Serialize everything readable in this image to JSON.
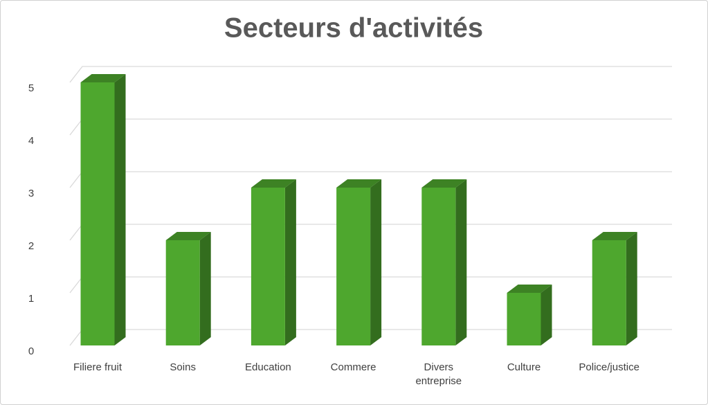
{
  "chart_data": {
    "type": "bar",
    "title": "Secteurs d'activités",
    "categories": [
      "Filiere fruit",
      "Soins",
      "Education",
      "Commere",
      "Divers entreprise",
      "Culture",
      "Police/justice"
    ],
    "values": [
      5,
      2,
      3,
      3,
      3,
      1,
      2
    ],
    "color": "#4ea72e",
    "ylim": [
      0,
      5
    ],
    "yticks": [
      0,
      1,
      2,
      3,
      4,
      5
    ],
    "grid": true
  }
}
